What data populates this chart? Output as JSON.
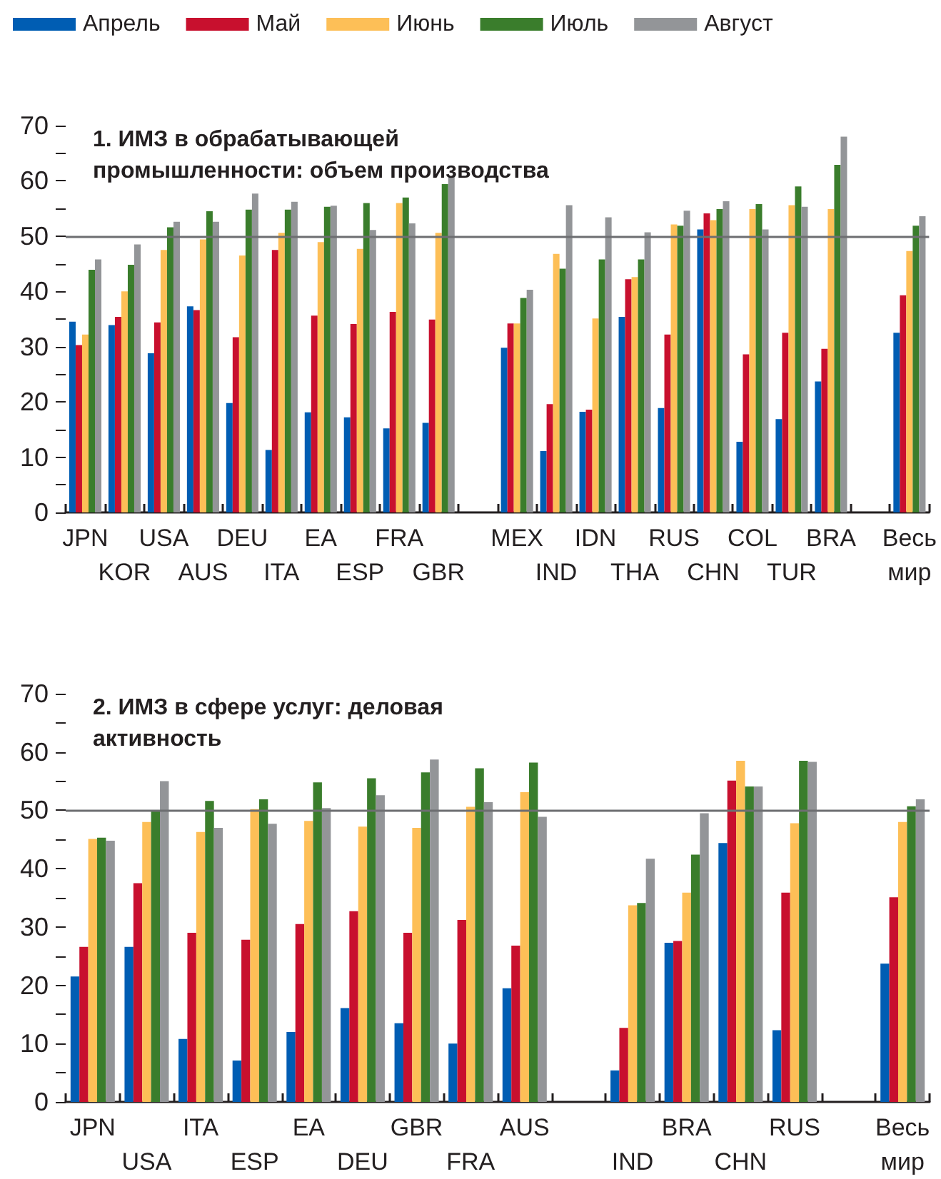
{
  "chart_data": [
    {
      "type": "bar",
      "title": "1. ИМЗ в обрабатывающей промышленности: объем производства",
      "categories": [
        "JPN",
        "KOR",
        "USA",
        "AUS",
        "DEU",
        "ITA",
        "EA",
        "ESP",
        "FRA",
        "GBR",
        null,
        "MEX",
        "IND",
        "IDN",
        "THA",
        "RUS",
        "CHN",
        "COL",
        "TUR",
        "BRA",
        null,
        "Весь мир"
      ],
      "series": [
        {
          "name": "Апрель",
          "color": "#005db3",
          "values": [
            34.5,
            33.9,
            28.8,
            37.3,
            19.8,
            11.3,
            18.1,
            17.2,
            15.2,
            16.2,
            null,
            29.8,
            11.1,
            18.2,
            35.4,
            18.9,
            51.2,
            12.8,
            16.9,
            23.7,
            null,
            32.5
          ]
        },
        {
          "name": "Май",
          "color": "#c8102e",
          "values": [
            30.3,
            35.4,
            34.4,
            36.6,
            31.7,
            47.5,
            35.6,
            34.1,
            36.3,
            34.9,
            null,
            34.2,
            19.6,
            18.6,
            42.2,
            32.2,
            54.1,
            28.6,
            32.5,
            29.6,
            null,
            39.3
          ]
        },
        {
          "name": "Июнь",
          "color": "#fdbf57",
          "values": [
            32.2,
            40.0,
            47.5,
            49.4,
            46.5,
            50.6,
            48.9,
            47.7,
            56.0,
            50.6,
            null,
            34.2,
            46.8,
            35.1,
            42.6,
            52.1,
            52.9,
            54.9,
            55.6,
            54.9,
            null,
            47.3
          ]
        },
        {
          "name": "Июль",
          "color": "#3a7d2c",
          "values": [
            43.9,
            44.8,
            51.6,
            54.5,
            54.8,
            54.8,
            55.3,
            56.0,
            57.0,
            59.4,
            null,
            38.8,
            44.1,
            45.8,
            45.8,
            51.9,
            54.9,
            55.8,
            59.0,
            62.9,
            null,
            51.9
          ]
        },
        {
          "name": "Август",
          "color": "#939598",
          "values": [
            45.8,
            48.5,
            52.6,
            52.6,
            57.7,
            56.2,
            55.5,
            51.1,
            52.3,
            60.8,
            null,
            40.3,
            55.6,
            53.4,
            50.7,
            54.6,
            56.3,
            51.2,
            55.3,
            68.0,
            null,
            53.6
          ]
        }
      ],
      "ylim": [
        0,
        70
      ],
      "yticks": [
        0,
        {
          "value": 5,
          "label": null
        },
        10,
        {
          "value": 15,
          "label": null
        },
        20,
        {
          "value": 25,
          "label": null
        },
        30,
        {
          "value": 35,
          "label": null
        },
        40,
        {
          "value": 45,
          "label": null
        },
        50,
        {
          "value": 55,
          "label": null
        },
        60,
        {
          "value": 65,
          "label": null
        },
        70
      ],
      "ref_lines": [
        {
          "axis": "y",
          "value": 50,
          "color": "#6d6e71"
        }
      ],
      "grid": false,
      "legend": "top"
    },
    {
      "type": "bar",
      "title": "2. ИМЗ в сфере услуг: деловая активность",
      "categories": [
        "JPN",
        "USA",
        "ITA",
        "ESP",
        "EA",
        "DEU",
        "GBR",
        "FRA",
        "AUS",
        null,
        "IND",
        "BRA",
        "CHN",
        "RUS",
        null,
        "Весь мир"
      ],
      "series": [
        {
          "color": "#005db3",
          "values": [
            21.5,
            26.6,
            10.8,
            7.1,
            12.0,
            16.1,
            13.5,
            10.0,
            19.5,
            null,
            5.4,
            27.3,
            44.4,
            12.3,
            null,
            23.7
          ]
        },
        {
          "color": "#c8102e",
          "values": [
            26.6,
            37.5,
            29.0,
            27.8,
            30.5,
            32.7,
            29.0,
            31.2,
            26.8,
            null,
            12.7,
            27.6,
            55.1,
            35.9,
            null,
            35.1
          ]
        },
        {
          "color": "#fdbf57",
          "values": [
            45.1,
            48.0,
            46.3,
            50.2,
            48.2,
            47.2,
            47.0,
            50.6,
            53.1,
            null,
            33.7,
            35.9,
            58.5,
            47.8,
            null,
            48.0
          ]
        },
        {
          "color": "#3a7d2c",
          "values": [
            45.3,
            49.9,
            51.6,
            51.9,
            54.8,
            55.5,
            56.5,
            57.2,
            58.2,
            null,
            34.1,
            42.4,
            54.1,
            58.5,
            null,
            50.7
          ]
        },
        {
          "color": "#939598",
          "values": [
            44.8,
            55.0,
            47.0,
            47.7,
            50.4,
            52.6,
            58.7,
            51.4,
            48.9,
            null,
            41.7,
            49.5,
            54.1,
            58.3,
            null,
            51.9
          ]
        }
      ],
      "ylim": [
        0,
        70
      ],
      "yticks": [
        0,
        {
          "value": 5,
          "label": null
        },
        10,
        {
          "value": 15,
          "label": null
        },
        20,
        {
          "value": 25,
          "label": null
        },
        30,
        {
          "value": 35,
          "label": null
        },
        40,
        {
          "value": 45,
          "label": null
        },
        50,
        {
          "value": 55,
          "label": null
        },
        60,
        {
          "value": 65,
          "label": null
        },
        70
      ],
      "ref_lines": [
        {
          "axis": "y",
          "value": 50,
          "color": "#6d6e71"
        }
      ],
      "grid": false,
      "legend": false
    }
  ]
}
